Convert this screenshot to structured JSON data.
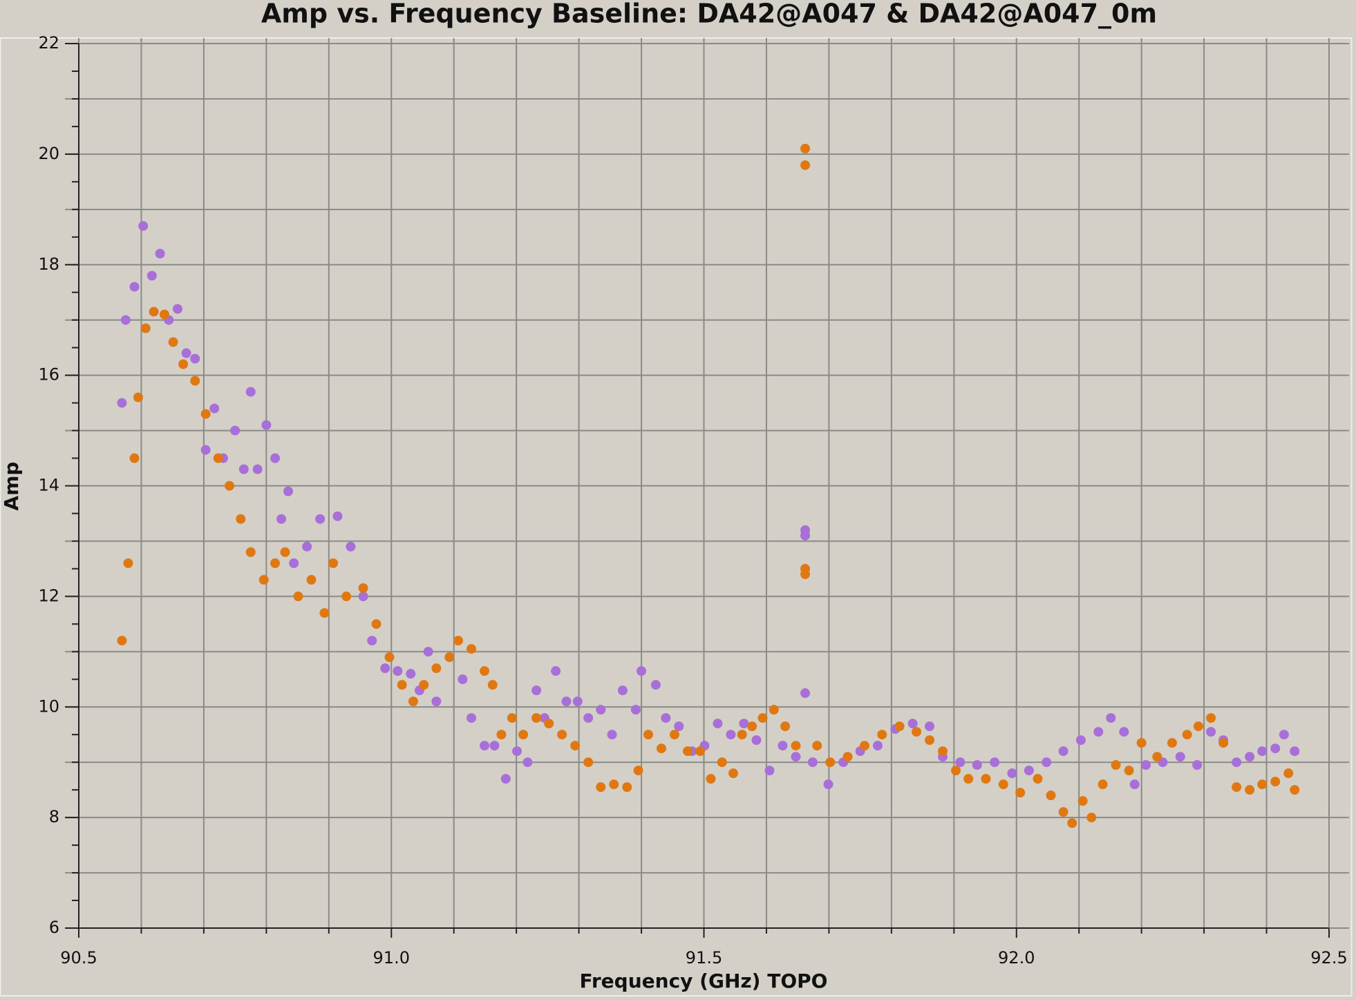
{
  "chart_data": {
    "type": "scatter",
    "title": "Amp vs. Frequency Baseline: DA42@A047 & DA42@A047_0m",
    "x_label": "Frequency (GHz) TOPO",
    "y_label": "Amp",
    "xlim": [
      90.5,
      92.5
    ],
    "xticks": [
      90.5,
      {
        "value": 91,
        "label": "91.0"
      },
      91.5,
      {
        "value": 92,
        "label": "92.0"
      },
      92.5
    ],
    "ylim": [
      6,
      22
    ],
    "yticks": [
      6,
      8,
      10,
      12,
      14,
      16,
      18,
      20,
      22
    ],
    "grid": true,
    "series": [
      {
        "color": "#a86fd8",
        "x": [
          90.569,
          90.575,
          90.589,
          90.603,
          90.617,
          90.63,
          90.644,
          90.658,
          90.672,
          90.686,
          90.703,
          90.717,
          90.731,
          90.75,
          90.764,
          90.775,
          90.786,
          90.8,
          90.814,
          90.824,
          90.835,
          90.844,
          90.865,
          90.886,
          90.914,
          90.935,
          90.955,
          90.969,
          90.99,
          91.01,
          91.031,
          91.045,
          91.059,
          91.072,
          91.093,
          91.114,
          91.128,
          91.149,
          91.165,
          91.183,
          91.201,
          91.218,
          91.232,
          91.245,
          91.263,
          91.28,
          91.298,
          91.315,
          91.335,
          91.353,
          91.37,
          91.391,
          91.4,
          91.423,
          91.439,
          91.46,
          91.481,
          91.501,
          91.522,
          91.543,
          91.564,
          91.584,
          91.605,
          91.626,
          91.647,
          91.662,
          91.662,
          91.662,
          91.674,
          91.699,
          91.723,
          91.75,
          91.778,
          91.806,
          91.834,
          91.861,
          91.882,
          91.91,
          91.937,
          91.965,
          91.993,
          92.02,
          92.048,
          92.075,
          92.103,
          92.131,
          92.151,
          92.172,
          92.189,
          92.207,
          92.234,
          92.262,
          92.289,
          92.311,
          92.331,
          92.352,
          92.373,
          92.393,
          92.414,
          92.428,
          92.445
        ],
        "values": [
          15.5,
          17.0,
          17.6,
          18.7,
          17.8,
          18.2,
          17.0,
          17.2,
          16.4,
          16.3,
          14.65,
          15.4,
          14.5,
          15.0,
          14.3,
          15.7,
          14.3,
          15.1,
          14.5,
          13.4,
          13.9,
          12.6,
          12.9,
          13.4,
          13.45,
          12.9,
          12.0,
          11.2,
          10.7,
          10.65,
          10.6,
          10.3,
          11.0,
          10.1,
          10.9,
          10.5,
          9.8,
          9.3,
          9.3,
          8.7,
          9.2,
          9.0,
          10.3,
          9.8,
          10.65,
          10.1,
          10.1,
          9.8,
          9.95,
          9.5,
          10.3,
          9.95,
          10.65,
          10.4,
          9.8,
          9.65,
          9.2,
          9.3,
          9.7,
          9.5,
          9.7,
          9.4,
          8.85,
          9.3,
          9.1,
          13.2,
          13.1,
          10.25,
          9.0,
          8.6,
          9.0,
          9.2,
          9.3,
          9.6,
          9.7,
          9.65,
          9.1,
          9.0,
          8.95,
          9.0,
          8.8,
          8.85,
          9.0,
          9.2,
          9.4,
          9.55,
          9.8,
          9.55,
          8.6,
          8.95,
          9.0,
          9.1,
          8.95,
          9.55,
          9.4,
          9.0,
          9.1,
          9.2,
          9.25,
          9.5,
          9.2
        ]
      },
      {
        "color": "#e07812",
        "x": [
          90.569,
          90.579,
          90.589,
          90.595,
          90.607,
          90.62,
          90.637,
          90.651,
          90.667,
          90.686,
          90.703,
          90.723,
          90.741,
          90.759,
          90.775,
          90.796,
          90.814,
          90.83,
          90.851,
          90.872,
          90.893,
          90.907,
          90.928,
          90.955,
          90.976,
          90.997,
          91.017,
          91.035,
          91.052,
          91.072,
          91.093,
          91.107,
          91.128,
          91.149,
          91.162,
          91.176,
          91.193,
          91.211,
          91.232,
          91.252,
          91.273,
          91.294,
          91.315,
          91.335,
          91.356,
          91.377,
          91.395,
          91.411,
          91.432,
          91.453,
          91.474,
          91.494,
          91.511,
          91.529,
          91.547,
          91.561,
          91.577,
          91.594,
          91.612,
          91.63,
          91.647,
          91.662,
          91.662,
          91.662,
          91.662,
          91.681,
          91.702,
          91.73,
          91.757,
          91.785,
          91.813,
          91.84,
          91.861,
          91.882,
          91.903,
          91.923,
          91.951,
          91.979,
          92.006,
          92.034,
          92.055,
          92.075,
          92.089,
          92.106,
          92.12,
          92.138,
          92.159,
          92.18,
          92.2,
          92.225,
          92.249,
          92.273,
          92.291,
          92.311,
          92.331,
          92.352,
          92.373,
          92.393,
          92.414,
          92.435,
          92.445
        ],
        "values": [
          11.2,
          12.6,
          14.5,
          15.6,
          16.85,
          17.15,
          17.1,
          16.6,
          16.2,
          15.9,
          15.3,
          14.5,
          14.0,
          13.4,
          12.8,
          12.3,
          12.6,
          12.8,
          12.0,
          12.3,
          11.7,
          12.6,
          12.0,
          12.15,
          11.5,
          10.9,
          10.4,
          10.1,
          10.4,
          10.7,
          10.9,
          11.2,
          11.05,
          10.65,
          10.4,
          9.5,
          9.8,
          9.5,
          9.8,
          9.7,
          9.5,
          9.3,
          9.0,
          8.55,
          8.6,
          8.55,
          8.85,
          9.5,
          9.25,
          9.5,
          9.2,
          9.2,
          8.7,
          9.0,
          8.8,
          9.5,
          9.65,
          9.8,
          9.95,
          9.65,
          9.3,
          20.1,
          19.8,
          12.5,
          12.4,
          9.3,
          9.0,
          9.1,
          9.3,
          9.5,
          9.65,
          9.55,
          9.4,
          9.2,
          8.85,
          8.7,
          8.7,
          8.6,
          8.45,
          8.7,
          8.4,
          8.1,
          7.9,
          8.3,
          8.0,
          8.6,
          8.95,
          8.85,
          9.35,
          9.1,
          9.35,
          9.5,
          9.65,
          9.8,
          9.35,
          8.55,
          8.5,
          8.6,
          8.65,
          8.8,
          8.5
        ]
      }
    ]
  }
}
